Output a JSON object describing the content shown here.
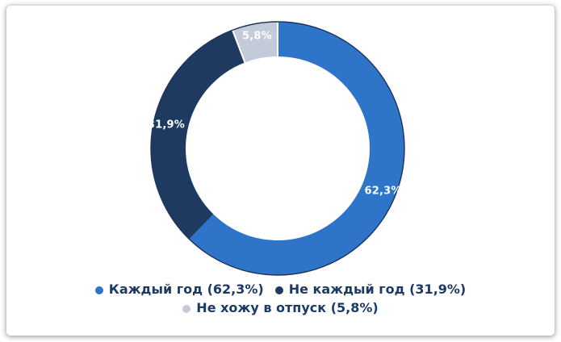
{
  "chart_data": {
    "type": "pie",
    "subtype": "donut",
    "title": "",
    "legend_position": "bottom",
    "segments": [
      {
        "label": "Каждый год",
        "value": 62.3,
        "display": "62,3%",
        "color": "#2e74c9"
      },
      {
        "label": "Не каждый год",
        "value": 31.9,
        "display": "31,9%",
        "color": "#1e3a60"
      },
      {
        "label": "Не хожу в отпуск",
        "value": 5.8,
        "display": "5,8%",
        "color": "#c3cbd9"
      }
    ],
    "slice_label_color": "#ffffff",
    "outer_outline_color": "#1d3457",
    "separator_color": "#ffffff"
  },
  "legend": {
    "text_color": "#1c3a66",
    "rows": [
      {
        "items": [
          {
            "label": "Каждый год (62,3%)",
            "color": "#2e74c9"
          },
          {
            "label": "Не каждый год (31,9%)",
            "color": "#1e3a60"
          }
        ]
      },
      {
        "items": [
          {
            "label": "Не хожу в отпуск (5,8%)",
            "color": "#c3cbd9"
          }
        ]
      }
    ]
  }
}
